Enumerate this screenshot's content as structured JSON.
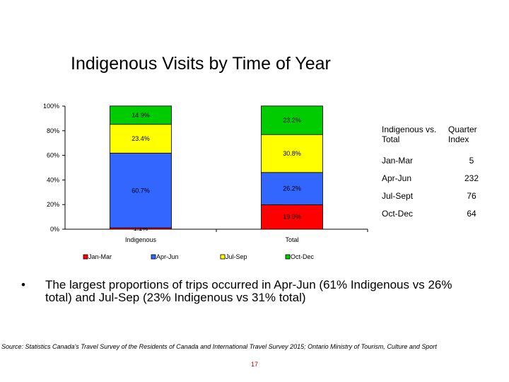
{
  "title": "Indigenous Visits by Time of Year",
  "chart_data": {
    "type": "bar",
    "stacked": true,
    "percent_stacked": true,
    "categories": [
      "Indigenous",
      "Total"
    ],
    "series": [
      {
        "name": "Jan-Mar",
        "values": [
          1.1,
          19.9
        ],
        "labels": [
          "1.1%",
          "19.9%"
        ],
        "color": "#ff0000"
      },
      {
        "name": "Apr-Jun",
        "values": [
          60.7,
          26.2
        ],
        "labels": [
          "60.7%",
          "26.2%"
        ],
        "color": "#3366ff"
      },
      {
        "name": "Jul-Sep",
        "values": [
          23.4,
          30.8
        ],
        "labels": [
          "23.4%",
          "30.8%"
        ],
        "color": "#ffff00"
      },
      {
        "name": "Oct-Dec",
        "values": [
          14.9,
          23.2
        ],
        "labels": [
          "14.9%",
          "23.2%"
        ],
        "color": "#00cc00"
      }
    ],
    "y_ticks": [
      "0%",
      "20%",
      "40%",
      "60%",
      "80%",
      "100%"
    ],
    "ylim": [
      0,
      100
    ],
    "grid": false,
    "legend_position": "bottom"
  },
  "index_table": {
    "col1": "Indigenous vs. Total",
    "col2": "Quarter Index",
    "rows": [
      {
        "label": "Jan-Mar",
        "value": "5"
      },
      {
        "label": "Apr-Jun",
        "value": "232"
      },
      {
        "label": "Jul-Sept",
        "value": "76"
      },
      {
        "label": "Oct-Dec",
        "value": "64"
      }
    ]
  },
  "bullet": {
    "symbol": "•",
    "text": "The largest proportions of trips occurred in Apr-Jun (61% Indigenous vs 26% total) and Jul-Sep (23% Indigenous vs 31% total)"
  },
  "source": "Source: Statistics Canada's Travel Survey of the Residents of Canada and International Travel Survey 2015; Ontario Ministry of Tourism, Culture and Sport",
  "page_number": "17"
}
